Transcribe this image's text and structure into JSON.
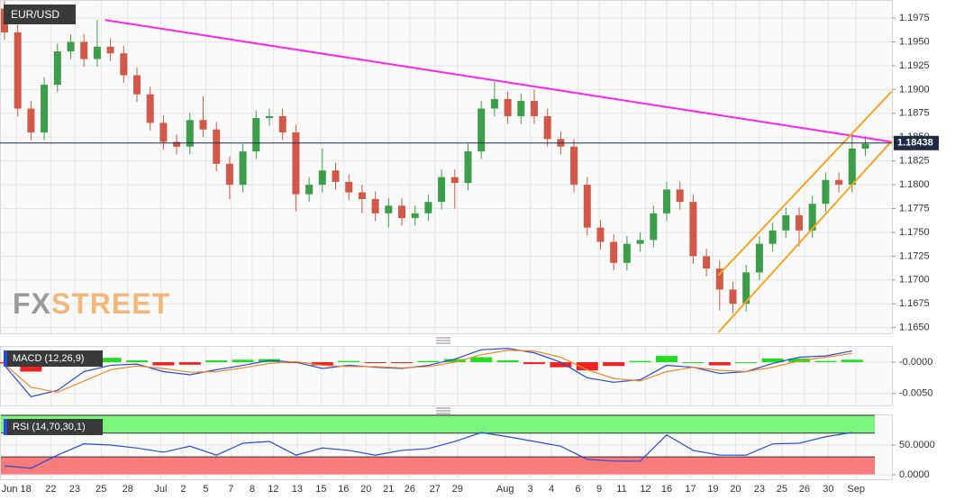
{
  "chart_data": {
    "type": "candlestick",
    "title": "EUR/USD",
    "watermark": [
      "FX",
      "STREET"
    ],
    "grid": true,
    "up_color": "#3c9d4a",
    "down_color": "#d2584a",
    "xticks": [
      {
        "value": 0.9,
        "label": "Jun 18"
      },
      {
        "value": 3.5,
        "label": "22"
      },
      {
        "value": 5.3,
        "label": "23"
      },
      {
        "value": 7.3,
        "label": "25"
      },
      {
        "value": 9.3,
        "label": "28"
      },
      {
        "value": 11.8,
        "label": "Jul"
      },
      {
        "value": 13.5,
        "label": "2"
      },
      {
        "value": 15.2,
        "label": "5"
      },
      {
        "value": 17.1,
        "label": "7"
      },
      {
        "value": 18.7,
        "label": "8"
      },
      {
        "value": 20.3,
        "label": "12"
      },
      {
        "value": 22.1,
        "label": "13"
      },
      {
        "value": 23.9,
        "label": "15"
      },
      {
        "value": 25.6,
        "label": "16"
      },
      {
        "value": 27.3,
        "label": "20"
      },
      {
        "value": 29.0,
        "label": "21"
      },
      {
        "value": 30.6,
        "label": "26"
      },
      {
        "value": 32.5,
        "label": "27"
      },
      {
        "value": 34.2,
        "label": "29"
      },
      {
        "value": 37.8,
        "label": "Aug"
      },
      {
        "value": 39.7,
        "label": "3"
      },
      {
        "value": 41.3,
        "label": "4"
      },
      {
        "value": 43.3,
        "label": "6"
      },
      {
        "value": 44.9,
        "label": "9"
      },
      {
        "value": 46.6,
        "label": "11"
      },
      {
        "value": 48.4,
        "label": "12"
      },
      {
        "value": 50.0,
        "label": "16"
      },
      {
        "value": 51.8,
        "label": "17"
      },
      {
        "value": 53.5,
        "label": "19"
      },
      {
        "value": 55.2,
        "label": "20"
      },
      {
        "value": 57.0,
        "label": "23"
      },
      {
        "value": 58.7,
        "label": "25"
      },
      {
        "value": 60.4,
        "label": "26"
      },
      {
        "value": 62.2,
        "label": "30"
      },
      {
        "value": 64.3,
        "label": "Sep"
      }
    ],
    "ylim": [
      1.1644,
      1.1994
    ],
    "yticks": [
      {
        "value": 1.165,
        "label": "1.1650"
      },
      {
        "value": 1.1675,
        "label": "1.1675"
      },
      {
        "value": 1.17,
        "label": "1.1700"
      },
      {
        "value": 1.1725,
        "label": "1.1725"
      },
      {
        "value": 1.175,
        "label": "1.1750"
      },
      {
        "value": 1.1775,
        "label": "1.1775"
      },
      {
        "value": 1.18,
        "label": "1.1800"
      },
      {
        "value": 1.1825,
        "label": "1.1825"
      },
      {
        "value": 1.185,
        "label": "1.1850"
      },
      {
        "value": 1.1875,
        "label": "1.1875"
      },
      {
        "value": 1.19,
        "label": "1.1900"
      },
      {
        "value": 1.1925,
        "label": "1.1925"
      },
      {
        "value": 1.195,
        "label": "1.1950"
      },
      {
        "value": 1.1975,
        "label": "1.1975"
      }
    ],
    "open": [
      1.1985,
      1.196,
      1.188,
      1.1855,
      1.1905,
      1.194,
      1.195,
      1.1932,
      1.1945,
      1.1938,
      1.1915,
      1.1895,
      1.1865,
      1.1845,
      1.184,
      1.1868,
      1.1858,
      1.1822,
      1.18,
      1.1835,
      1.187,
      1.1872,
      1.1855,
      1.179,
      1.18,
      1.1815,
      1.1803,
      1.1792,
      1.1785,
      1.177,
      1.1778,
      1.1765,
      1.177,
      1.1782,
      1.1808,
      1.1802,
      1.1835,
      1.188,
      1.189,
      1.1872,
      1.1888,
      1.1872,
      1.1848,
      1.184,
      1.18,
      1.1755,
      1.174,
      1.1718,
      1.1738,
      1.1742,
      1.177,
      1.1795,
      1.1782,
      1.1725,
      1.1712,
      1.169,
      1.1675,
      1.1708,
      1.1738,
      1.1752,
      1.1768,
      1.1752,
      1.178,
      1.1805,
      1.18,
      1.1838
    ],
    "high": [
      1.1993,
      1.1968,
      1.1888,
      1.1913,
      1.1948,
      1.1958,
      1.1958,
      1.1973,
      1.1953,
      1.1946,
      1.1923,
      1.1903,
      1.1873,
      1.1853,
      1.1876,
      1.1893,
      1.1866,
      1.183,
      1.1843,
      1.1878,
      1.188,
      1.188,
      1.1863,
      1.1808,
      1.1838,
      1.1823,
      1.1811,
      1.18,
      1.1793,
      1.1786,
      1.1786,
      1.1778,
      1.179,
      1.1816,
      1.1816,
      1.1843,
      1.1888,
      1.1908,
      1.1898,
      1.1896,
      1.19,
      1.188,
      1.1856,
      1.1848,
      1.1808,
      1.1763,
      1.1748,
      1.1746,
      1.175,
      1.1778,
      1.1803,
      1.1803,
      1.179,
      1.1733,
      1.172,
      1.1698,
      1.1716,
      1.1746,
      1.176,
      1.1776,
      1.1776,
      1.1788,
      1.1813,
      1.1813,
      1.1855,
      1.1851
    ],
    "low": [
      1.1952,
      1.1872,
      1.1847,
      1.1847,
      1.1897,
      1.1932,
      1.1924,
      1.1924,
      1.193,
      1.1907,
      1.1887,
      1.1857,
      1.1837,
      1.1832,
      1.1832,
      1.185,
      1.1814,
      1.1785,
      1.1792,
      1.1827,
      1.1862,
      1.1847,
      1.1772,
      1.1782,
      1.1792,
      1.1795,
      1.1784,
      1.177,
      1.1762,
      1.1755,
      1.1757,
      1.1757,
      1.1762,
      1.1774,
      1.1775,
      1.1794,
      1.1827,
      1.1872,
      1.1864,
      1.1864,
      1.1864,
      1.184,
      1.1832,
      1.1792,
      1.1747,
      1.1732,
      1.171,
      1.171,
      1.173,
      1.1734,
      1.1762,
      1.1774,
      1.1717,
      1.1704,
      1.1668,
      1.1665,
      1.1667,
      1.17,
      1.173,
      1.1744,
      1.1735,
      1.1744,
      1.1772,
      1.1792,
      1.1792,
      1.183
    ],
    "close": [
      1.196,
      1.188,
      1.1855,
      1.1905,
      1.194,
      1.195,
      1.1932,
      1.1945,
      1.1938,
      1.1915,
      1.1895,
      1.1865,
      1.1845,
      1.184,
      1.1868,
      1.1858,
      1.1822,
      1.18,
      1.1835,
      1.187,
      1.1872,
      1.1855,
      1.179,
      1.18,
      1.1815,
      1.1803,
      1.1792,
      1.1785,
      1.177,
      1.1778,
      1.1765,
      1.177,
      1.1782,
      1.1808,
      1.1802,
      1.1835,
      1.188,
      1.189,
      1.1872,
      1.1888,
      1.1872,
      1.1848,
      1.184,
      1.18,
      1.1755,
      1.174,
      1.1718,
      1.1738,
      1.1742,
      1.177,
      1.1795,
      1.1782,
      1.1725,
      1.1712,
      1.169,
      1.1675,
      1.1708,
      1.1738,
      1.1752,
      1.1768,
      1.1752,
      1.178,
      1.1805,
      1.18,
      1.1838,
      1.1843
    ],
    "last_price": 1.18438,
    "last_price_color": "#1f2a44",
    "trendlines": [
      {
        "color": "#ff22ee",
        "x": [
          7.6,
          67.0
        ],
        "y": [
          1.1973,
          1.1845
        ]
      },
      {
        "color": "#f5a623",
        "x": [
          53.9,
          67.0
        ],
        "y": [
          1.1705,
          1.1898
        ]
      },
      {
        "color": "#f5a623",
        "x": [
          53.9,
          67.0
        ],
        "y": [
          1.1645,
          1.1846
        ]
      }
    ],
    "indicators": [
      {
        "type": "macd",
        "legend": "MACD (12,26,9)",
        "ylim": [
          -0.0069,
          0.0026
        ],
        "yticks": [
          {
            "value": 0,
            "label": "-0.0000"
          },
          {
            "value": -0.005,
            "label": "-0.0050"
          }
        ],
        "x": [
          0,
          2,
          4,
          6,
          8,
          10,
          12,
          14,
          16,
          18,
          20,
          22,
          24,
          26,
          28,
          30,
          32,
          34,
          36,
          38,
          40,
          42,
          44,
          46,
          48,
          50,
          52,
          54,
          56,
          58,
          60,
          62,
          64
        ],
        "series": [
          {
            "color": "#2a4bd7",
            "values": [
              -0.0005,
              -0.0055,
              -0.0045,
              -0.0015,
              -0.0005,
              -0.0003,
              -0.0015,
              -0.002,
              -0.0012,
              -0.0005,
              0.0003,
              0.0,
              -0.001,
              -0.0005,
              -0.0008,
              -0.001,
              -0.0005,
              0.0005,
              0.002,
              0.0022,
              0.0015,
              0.0,
              -0.0025,
              -0.0032,
              -0.0028,
              -0.0005,
              -0.0008,
              -0.0018,
              -0.0015,
              -0.0002,
              0.0008,
              0.001,
              0.0018
            ]
          },
          {
            "color": "#f08a24",
            "values": [
              -0.0003,
              -0.004,
              -0.0048,
              -0.003,
              -0.0012,
              -0.0006,
              -0.001,
              -0.0016,
              -0.0015,
              -0.0009,
              -0.0002,
              0.0001,
              -0.0005,
              -0.0007,
              -0.0007,
              -0.0009,
              -0.0007,
              0.0,
              0.0012,
              0.0019,
              0.0018,
              0.0008,
              -0.0012,
              -0.0026,
              -0.003,
              -0.0015,
              -0.0008,
              -0.0013,
              -0.0015,
              -0.0008,
              0.0002,
              0.0008,
              0.0014
            ]
          }
        ],
        "histogram": {
          "up_color": "#22dd22",
          "down_color": "#ee2222",
          "values": [
            -0.0002,
            -0.0015,
            0.0003,
            0.0015,
            0.0007,
            0.0003,
            -0.0005,
            -0.0004,
            0.0003,
            0.0004,
            0.0005,
            -0.0001,
            -0.0005,
            0.0002,
            -0.0001,
            -0.0001,
            0.0002,
            0.0005,
            0.0008,
            0.0003,
            -0.0003,
            -0.0008,
            -0.0013,
            -0.0006,
            0.0002,
            0.001,
            0.0,
            -0.0005,
            0.0,
            0.0006,
            0.0006,
            0.0002,
            0.0004
          ]
        }
      },
      {
        "type": "rsi",
        "legend": "RSI (14,70,30,1)",
        "ylim": [
          -7.6,
          101.5
        ],
        "yticks": [
          {
            "value": 50,
            "label": "50.0000"
          },
          {
            "value": 0,
            "label": "0.0000"
          }
        ],
        "zones": [
          {
            "range": [
              70,
              100
            ],
            "color": "#7cf57c"
          },
          {
            "range": [
              0,
              30
            ],
            "color": "#f77b7b"
          }
        ],
        "x": [
          0,
          2,
          4,
          6,
          8,
          10,
          12,
          14,
          16,
          18,
          20,
          22,
          24,
          26,
          28,
          30,
          32,
          34,
          36,
          38,
          40,
          42,
          44,
          46,
          48,
          50,
          52,
          54,
          56,
          58,
          60,
          62,
          64
        ],
        "series": [
          {
            "color": "#2a4bd7",
            "values": [
              15,
              11,
              33,
              52,
              50,
              45,
              38,
              48,
              33,
              53,
              56,
              33,
              45,
              41,
              33,
              41,
              44,
              56,
              71,
              64,
              56,
              48,
              26,
              23,
              23,
              67,
              41,
              33,
              33,
              52,
              53,
              64,
              71
            ]
          }
        ]
      }
    ]
  }
}
